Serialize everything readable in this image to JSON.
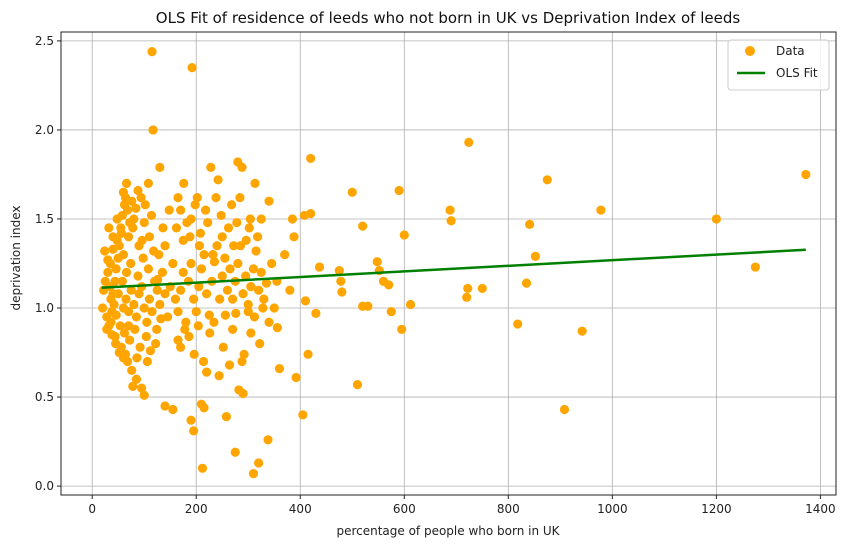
{
  "chart_data": {
    "type": "scatter",
    "title": "OLS Fit of residence of leeds who not born in UK vs Deprivation Index of leeds",
    "xlabel": "percentage of people who born in UK",
    "ylabel": "deprivation index",
    "xlim": [
      -60,
      1430
    ],
    "ylim": [
      -0.05,
      2.55
    ],
    "xticks": [
      0,
      200,
      400,
      600,
      800,
      1000,
      1200,
      1400
    ],
    "yticks": [
      0.0,
      0.5,
      1.0,
      1.5,
      2.0,
      2.5
    ],
    "grid": true,
    "legend_position": "top-right",
    "colors": {
      "data": "#FFA500",
      "fit": "#008000"
    },
    "series": [
      {
        "name": "Data",
        "kind": "scatter",
        "points": [
          [
            115,
            2.44
          ],
          [
            192,
            2.35
          ],
          [
            117,
            2.0
          ],
          [
            724,
            1.93
          ],
          [
            420,
            1.84
          ],
          [
            280,
            1.82
          ],
          [
            288,
            1.79
          ],
          [
            228,
            1.79
          ],
          [
            130,
            1.79
          ],
          [
            875,
            1.72
          ],
          [
            1372,
            1.75
          ],
          [
            313,
            1.7
          ],
          [
            500,
            1.65
          ],
          [
            590,
            1.66
          ],
          [
            420,
            1.53
          ],
          [
            408,
            1.52
          ],
          [
            385,
            1.5
          ],
          [
            520,
            1.46
          ],
          [
            600,
            1.41
          ],
          [
            690,
            1.49
          ],
          [
            688,
            1.55
          ],
          [
            841,
            1.47
          ],
          [
            978,
            1.55
          ],
          [
            1200,
            1.5
          ],
          [
            340,
            1.6
          ],
          [
            325,
            1.5
          ],
          [
            302,
            1.45
          ],
          [
            272,
            1.35
          ],
          [
            250,
            1.4
          ],
          [
            232,
            1.3
          ],
          [
            208,
            1.42
          ],
          [
            190,
            1.5
          ],
          [
            175,
            1.38
          ],
          [
            162,
            1.45
          ],
          [
            148,
            1.55
          ],
          [
            140,
            1.35
          ],
          [
            128,
            1.3
          ],
          [
            110,
            1.4
          ],
          [
            100,
            1.48
          ],
          [
            90,
            1.35
          ],
          [
            80,
            1.5
          ],
          [
            70,
            1.4
          ],
          [
            60,
            1.3
          ],
          [
            55,
            1.45
          ],
          [
            48,
            1.38
          ],
          [
            40,
            1.33
          ],
          [
            35,
            1.25
          ],
          [
            30,
            1.2
          ],
          [
            25,
            1.15
          ],
          [
            22,
            1.1
          ],
          [
            20,
            1.0
          ],
          [
            28,
            0.95
          ],
          [
            32,
            0.9
          ],
          [
            38,
            0.85
          ],
          [
            45,
            0.8
          ],
          [
            52,
            0.75
          ],
          [
            60,
            0.72
          ],
          [
            68,
            0.7
          ],
          [
            76,
            0.65
          ],
          [
            85,
            0.6
          ],
          [
            95,
            0.55
          ],
          [
            100,
            0.51
          ],
          [
            78,
            0.56
          ],
          [
            140,
            0.45
          ],
          [
            155,
            0.43
          ],
          [
            210,
            0.46
          ],
          [
            215,
            0.44
          ],
          [
            258,
            0.39
          ],
          [
            190,
            0.37
          ],
          [
            195,
            0.31
          ],
          [
            275,
            0.19
          ],
          [
            310,
            0.07
          ],
          [
            212,
            0.1
          ],
          [
            320,
            0.13
          ],
          [
            338,
            0.26
          ],
          [
            405,
            0.4
          ],
          [
            510,
            0.57
          ],
          [
            392,
            0.61
          ],
          [
            360,
            0.66
          ],
          [
            415,
            0.74
          ],
          [
            282,
            0.54
          ],
          [
            290,
            0.52
          ],
          [
            292,
            0.74
          ],
          [
            305,
            0.86
          ],
          [
            322,
            0.8
          ],
          [
            340,
            0.92
          ],
          [
            356,
            0.89
          ],
          [
            380,
            1.1
          ],
          [
            388,
            1.4
          ],
          [
            410,
            1.04
          ],
          [
            430,
            0.97
          ],
          [
            437,
            1.23
          ],
          [
            475,
            1.21
          ],
          [
            478,
            1.15
          ],
          [
            480,
            1.09
          ],
          [
            520,
            1.01
          ],
          [
            530,
            1.01
          ],
          [
            548,
            1.26
          ],
          [
            552,
            1.21
          ],
          [
            560,
            1.15
          ],
          [
            570,
            1.13
          ],
          [
            575,
            0.98
          ],
          [
            595,
            0.88
          ],
          [
            612,
            1.02
          ],
          [
            720,
            1.06
          ],
          [
            722,
            1.11
          ],
          [
            750,
            1.11
          ],
          [
            818,
            0.91
          ],
          [
            835,
            1.14
          ],
          [
            852,
            1.29
          ],
          [
            908,
            0.43
          ],
          [
            942,
            0.87
          ],
          [
            1275,
            1.23
          ],
          [
            60,
            1.0
          ],
          [
            65,
            1.05
          ],
          [
            70,
            0.98
          ],
          [
            75,
            1.1
          ],
          [
            80,
            1.02
          ],
          [
            85,
            0.95
          ],
          [
            90,
            1.08
          ],
          [
            95,
            1.12
          ],
          [
            100,
            1.0
          ],
          [
            105,
            0.92
          ],
          [
            110,
            1.05
          ],
          [
            115,
            0.98
          ],
          [
            120,
            1.15
          ],
          [
            125,
            1.1
          ],
          [
            130,
            1.02
          ],
          [
            135,
            1.2
          ],
          [
            140,
            1.08
          ],
          [
            145,
            0.95
          ],
          [
            150,
            1.12
          ],
          [
            155,
            1.25
          ],
          [
            42,
            1.02
          ],
          [
            46,
            0.96
          ],
          [
            50,
            1.08
          ],
          [
            54,
            0.9
          ],
          [
            58,
            1.15
          ],
          [
            62,
            0.86
          ],
          [
            66,
            1.2
          ],
          [
            72,
            0.82
          ],
          [
            74,
            1.25
          ],
          [
            82,
            0.88
          ],
          [
            88,
            1.18
          ],
          [
            92,
            0.78
          ],
          [
            98,
            1.28
          ],
          [
            104,
            0.84
          ],
          [
            108,
            1.22
          ],
          [
            112,
            0.76
          ],
          [
            118,
            1.32
          ],
          [
            122,
            0.8
          ],
          [
            126,
            1.16
          ],
          [
            132,
            0.94
          ],
          [
            34,
            1.12
          ],
          [
            36,
            1.05
          ],
          [
            38,
            0.98
          ],
          [
            40,
            1.08
          ],
          [
            44,
            1.15
          ],
          [
            46,
            1.22
          ],
          [
            50,
            1.28
          ],
          [
            52,
            1.35
          ],
          [
            56,
            1.42
          ],
          [
            58,
            1.52
          ],
          [
            62,
            1.58
          ],
          [
            64,
            1.62
          ],
          [
            68,
            1.55
          ],
          [
            72,
            1.48
          ],
          [
            76,
            1.6
          ],
          [
            84,
            1.56
          ],
          [
            88,
            1.66
          ],
          [
            94,
            1.62
          ],
          [
            102,
            1.58
          ],
          [
            108,
            1.7
          ],
          [
            160,
            1.05
          ],
          [
            165,
            0.98
          ],
          [
            170,
            1.1
          ],
          [
            175,
            1.2
          ],
          [
            180,
            0.92
          ],
          [
            185,
            1.15
          ],
          [
            190,
            1.25
          ],
          [
            195,
            1.05
          ],
          [
            200,
            0.98
          ],
          [
            205,
            1.12
          ],
          [
            210,
            1.22
          ],
          [
            215,
            1.3
          ],
          [
            220,
            1.08
          ],
          [
            225,
            0.96
          ],
          [
            230,
            1.15
          ],
          [
            235,
            1.26
          ],
          [
            240,
            1.35
          ],
          [
            245,
            1.05
          ],
          [
            250,
            1.18
          ],
          [
            255,
            1.28
          ],
          [
            260,
            1.1
          ],
          [
            265,
            1.22
          ],
          [
            270,
            1.05
          ],
          [
            275,
            1.15
          ],
          [
            280,
            1.25
          ],
          [
            285,
            1.35
          ],
          [
            290,
            1.08
          ],
          [
            295,
            1.18
          ],
          [
            300,
            1.02
          ],
          [
            305,
            1.12
          ],
          [
            310,
            1.22
          ],
          [
            315,
            1.32
          ],
          [
            320,
            1.1
          ],
          [
            325,
            1.2
          ],
          [
            330,
            1.05
          ],
          [
            335,
            1.14
          ],
          [
            345,
            1.25
          ],
          [
            350,
            1.0
          ],
          [
            355,
            1.15
          ],
          [
            370,
            1.3
          ],
          [
            165,
            1.62
          ],
          [
            170,
            1.55
          ],
          [
            176,
            1.7
          ],
          [
            182,
            1.48
          ],
          [
            188,
            1.4
          ],
          [
            198,
            1.58
          ],
          [
            202,
            1.62
          ],
          [
            206,
            1.35
          ],
          [
            218,
            1.55
          ],
          [
            222,
            1.48
          ],
          [
            238,
            1.62
          ],
          [
            242,
            1.72
          ],
          [
            248,
            1.52
          ],
          [
            262,
            1.45
          ],
          [
            268,
            1.58
          ],
          [
            278,
            1.48
          ],
          [
            284,
            1.62
          ],
          [
            296,
            1.38
          ],
          [
            304,
            1.5
          ],
          [
            318,
            1.4
          ],
          [
            165,
            0.82
          ],
          [
            170,
            0.78
          ],
          [
            178,
            0.88
          ],
          [
            186,
            0.84
          ],
          [
            196,
            0.74
          ],
          [
            204,
            0.9
          ],
          [
            214,
            0.7
          ],
          [
            220,
            0.64
          ],
          [
            226,
            0.86
          ],
          [
            234,
            0.92
          ],
          [
            244,
            0.62
          ],
          [
            252,
            0.78
          ],
          [
            256,
            0.96
          ],
          [
            264,
            0.68
          ],
          [
            270,
            0.88
          ],
          [
            276,
            0.97
          ],
          [
            288,
            0.7
          ],
          [
            300,
            0.98
          ],
          [
            312,
            0.95
          ],
          [
            328,
            1.0
          ],
          [
            30,
            1.27
          ],
          [
            24,
            1.32
          ],
          [
            28,
            0.88
          ],
          [
            32,
            1.45
          ],
          [
            36,
            0.92
          ],
          [
            40,
            1.4
          ],
          [
            44,
            0.84
          ],
          [
            48,
            1.5
          ],
          [
            56,
            0.78
          ],
          [
            60,
            1.65
          ],
          [
            64,
            0.74
          ],
          [
            66,
            1.7
          ],
          [
            70,
            0.9
          ],
          [
            78,
            1.45
          ],
          [
            86,
            0.72
          ],
          [
            96,
            1.38
          ],
          [
            106,
            0.7
          ],
          [
            114,
            1.52
          ],
          [
            124,
            0.88
          ],
          [
            136,
            1.45
          ]
        ]
      },
      {
        "name": "OLS Fit",
        "kind": "line",
        "points": [
          [
            18,
            1.114
          ],
          [
            1372,
            1.327
          ]
        ]
      }
    ]
  }
}
